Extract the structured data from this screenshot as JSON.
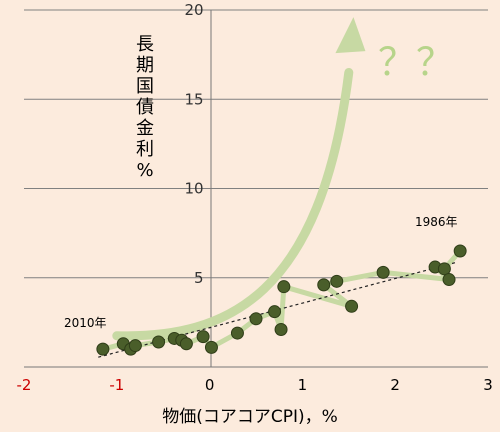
{
  "chart_data": {
    "type": "scatter",
    "xlabel": "物価(コアコアCPI)，%",
    "ylabel": "長期国債金利%",
    "xlim": [
      -2,
      3
    ],
    "ylim": [
      0,
      20
    ],
    "x_ticks": [
      "-2",
      "-1",
      "0",
      "1",
      "2",
      "3"
    ],
    "x_ticks_negative_color": "#cc0000",
    "y_ticks": [
      "5",
      "10",
      "15",
      "20"
    ],
    "grid": "horizontal",
    "series": [
      {
        "points": [
          {
            "x": -1.15,
            "y": 1.0
          },
          {
            "x": -0.93,
            "y": 1.3
          },
          {
            "x": -0.85,
            "y": 1.0
          },
          {
            "x": -0.8,
            "y": 1.2
          },
          {
            "x": -0.55,
            "y": 1.4
          },
          {
            "x": -0.38,
            "y": 1.6
          },
          {
            "x": -0.3,
            "y": 1.5
          },
          {
            "x": -0.25,
            "y": 1.3
          },
          {
            "x": -0.07,
            "y": 1.7
          },
          {
            "x": 0.02,
            "y": 1.1
          },
          {
            "x": 0.3,
            "y": 1.9
          },
          {
            "x": 0.5,
            "y": 2.7
          },
          {
            "x": 0.7,
            "y": 3.1
          },
          {
            "x": 0.77,
            "y": 2.1
          },
          {
            "x": 0.8,
            "y": 4.5
          },
          {
            "x": 1.23,
            "y": 4.6
          },
          {
            "x": 1.37,
            "y": 4.8
          },
          {
            "x": 1.53,
            "y": 3.4
          },
          {
            "x": 1.87,
            "y": 5.3
          },
          {
            "x": 2.43,
            "y": 5.6
          },
          {
            "x": 2.53,
            "y": 5.5
          },
          {
            "x": 2.58,
            "y": 4.9
          },
          {
            "x": 2.7,
            "y": 6.5
          }
        ],
        "color": "#4a5e2a",
        "path_color": "#c7d9a3"
      }
    ],
    "trend_line": {
      "x": [
        -1.2,
        2.65
      ],
      "y": [
        0.55,
        5.85
      ]
    },
    "annotations": {
      "start_label": "2010年",
      "end_label": "1986年",
      "question": "？？"
    },
    "colors": {
      "background": "#fcebdd",
      "grid": "#808080",
      "arrow": "#c7d9a3",
      "question": "#b7d48a"
    }
  }
}
